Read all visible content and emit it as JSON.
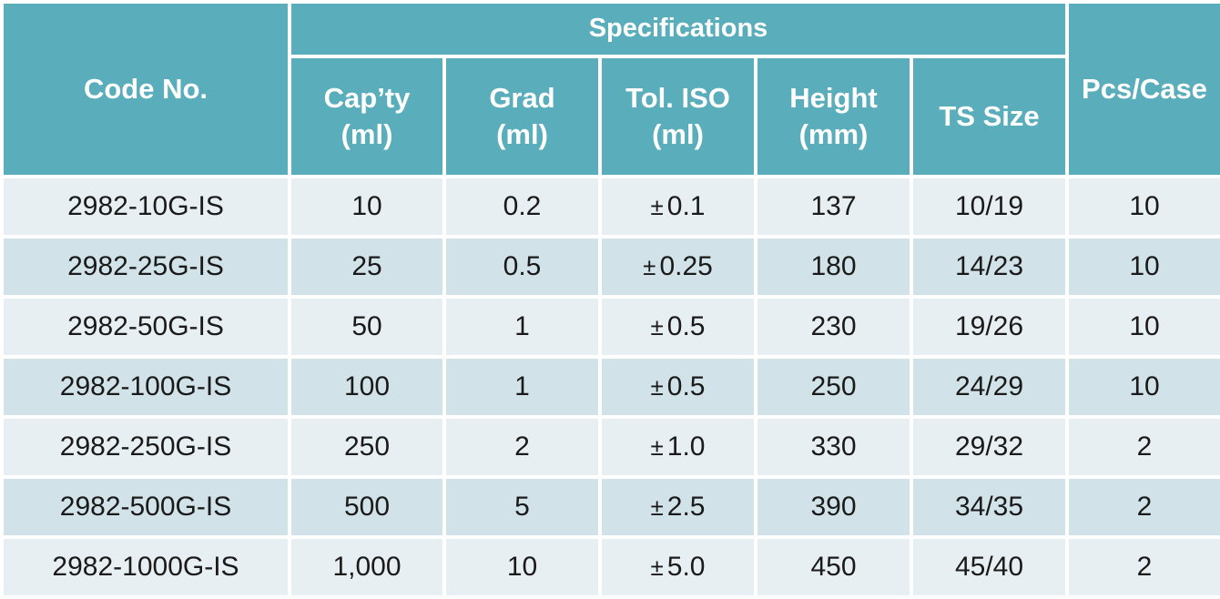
{
  "header": {
    "code_no": "Code No.",
    "specifications": "Specifications",
    "pcs_case": "Pcs/Case",
    "columns": [
      {
        "line1": "Cap’ty",
        "line2": "(ml)"
      },
      {
        "line1": "Grad",
        "line2": "(ml)"
      },
      {
        "line1": "Tol. ISO",
        "line2": "(ml)"
      },
      {
        "line1": "Height",
        "line2": "(mm)"
      },
      {
        "line1": "TS Size",
        "line2": ""
      }
    ]
  },
  "tolerance_symbol": "±",
  "rows": [
    {
      "code": "2982-10G-IS",
      "capacity": "10",
      "grad": "0.2",
      "tol": "0.1",
      "height": "137",
      "ts": "10/19",
      "pcs": "10"
    },
    {
      "code": "2982-25G-IS",
      "capacity": "25",
      "grad": "0.5",
      "tol": "0.25",
      "height": "180",
      "ts": "14/23",
      "pcs": "10"
    },
    {
      "code": "2982-50G-IS",
      "capacity": "50",
      "grad": "1",
      "tol": "0.5",
      "height": "230",
      "ts": "19/26",
      "pcs": "10"
    },
    {
      "code": "2982-100G-IS",
      "capacity": "100",
      "grad": "1",
      "tol": "0.5",
      "height": "250",
      "ts": "24/29",
      "pcs": "10"
    },
    {
      "code": "2982-250G-IS",
      "capacity": "250",
      "grad": "2",
      "tol": "1.0",
      "height": "330",
      "ts": "29/32",
      "pcs": "2"
    },
    {
      "code": "2982-500G-IS",
      "capacity": "500",
      "grad": "5",
      "tol": "2.5",
      "height": "390",
      "ts": "34/35",
      "pcs": "2"
    },
    {
      "code": "2982-1000G-IS",
      "capacity": "1,000",
      "grad": "10",
      "tol": "5.0",
      "height": "450",
      "ts": "45/40",
      "pcs": "2"
    }
  ],
  "colors": {
    "header_bg": "#5aaebb",
    "row_light": "#e8eff2",
    "row_dark": "#d1e3e8",
    "text": "#1a1a1a",
    "border": "#ffffff"
  }
}
